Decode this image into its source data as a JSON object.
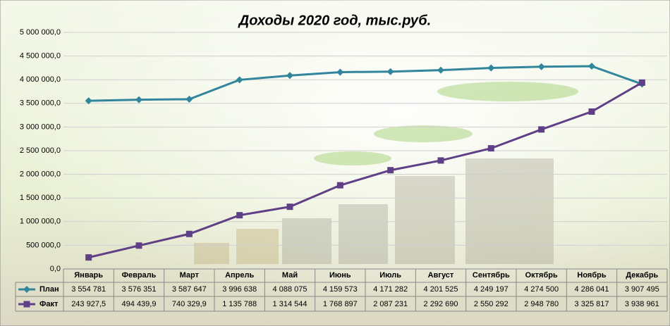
{
  "chart_data": {
    "type": "line",
    "title": "Доходы 2020 год, тыс.руб.",
    "categories": [
      "Январь",
      "Февраль",
      "Март",
      "Апрель",
      "Май",
      "Июнь",
      "Июль",
      "Август",
      "Сентябрь",
      "Октябрь",
      "Ноябрь",
      "Декабрь"
    ],
    "series": [
      {
        "name": "План",
        "color": "#31859c",
        "marker": "diamond",
        "values": [
          3554781,
          3576351,
          3587647,
          3996638,
          4088075,
          4159573,
          4171282,
          4201525,
          4249197,
          4274500,
          4286041,
          3907495
        ],
        "value_labels": [
          "3 554 781",
          "3 576 351",
          "3 587 647",
          "3 996 638",
          "4 088 075",
          "4 159 573",
          "4 171 282",
          "4 201 525",
          "4 249 197",
          "4 274 500",
          "4 286 041",
          "3 907 495"
        ]
      },
      {
        "name": "Факт",
        "color": "#5f3f86",
        "marker": "square",
        "values": [
          243927.5,
          494439.9,
          740329.9,
          1135788,
          1314544,
          1768897,
          2087231,
          2292690,
          2550292,
          2948780,
          3325817,
          3938961
        ],
        "value_labels": [
          "243 927,5",
          "494 439,9",
          "740 329,9",
          "1 135 788",
          "1 314 544",
          "1 768 897",
          "2 087 231",
          "2 292 690",
          "2 550 292",
          "2 948 780",
          "3 325 817",
          "3 938 961"
        ]
      }
    ],
    "ylim": [
      0,
      5000000
    ],
    "yticks": [
      {
        "value": 0,
        "label": "0,0"
      },
      {
        "value": 500000,
        "label": "500 000,0"
      },
      {
        "value": 1000000,
        "label": "1 000 000,0"
      },
      {
        "value": 1500000,
        "label": "1 500 000,0"
      },
      {
        "value": 2000000,
        "label": "2 000 000,0"
      },
      {
        "value": 2500000,
        "label": "2 500 000,0"
      },
      {
        "value": 3000000,
        "label": "3 000 000,0"
      },
      {
        "value": 3500000,
        "label": "3 500 000,0"
      },
      {
        "value": 4000000,
        "label": "4 000 000,0"
      },
      {
        "value": 4500000,
        "label": "4 500 000,0"
      },
      {
        "value": 5000000,
        "label": "5 000 000,0"
      }
    ],
    "grid": true
  }
}
